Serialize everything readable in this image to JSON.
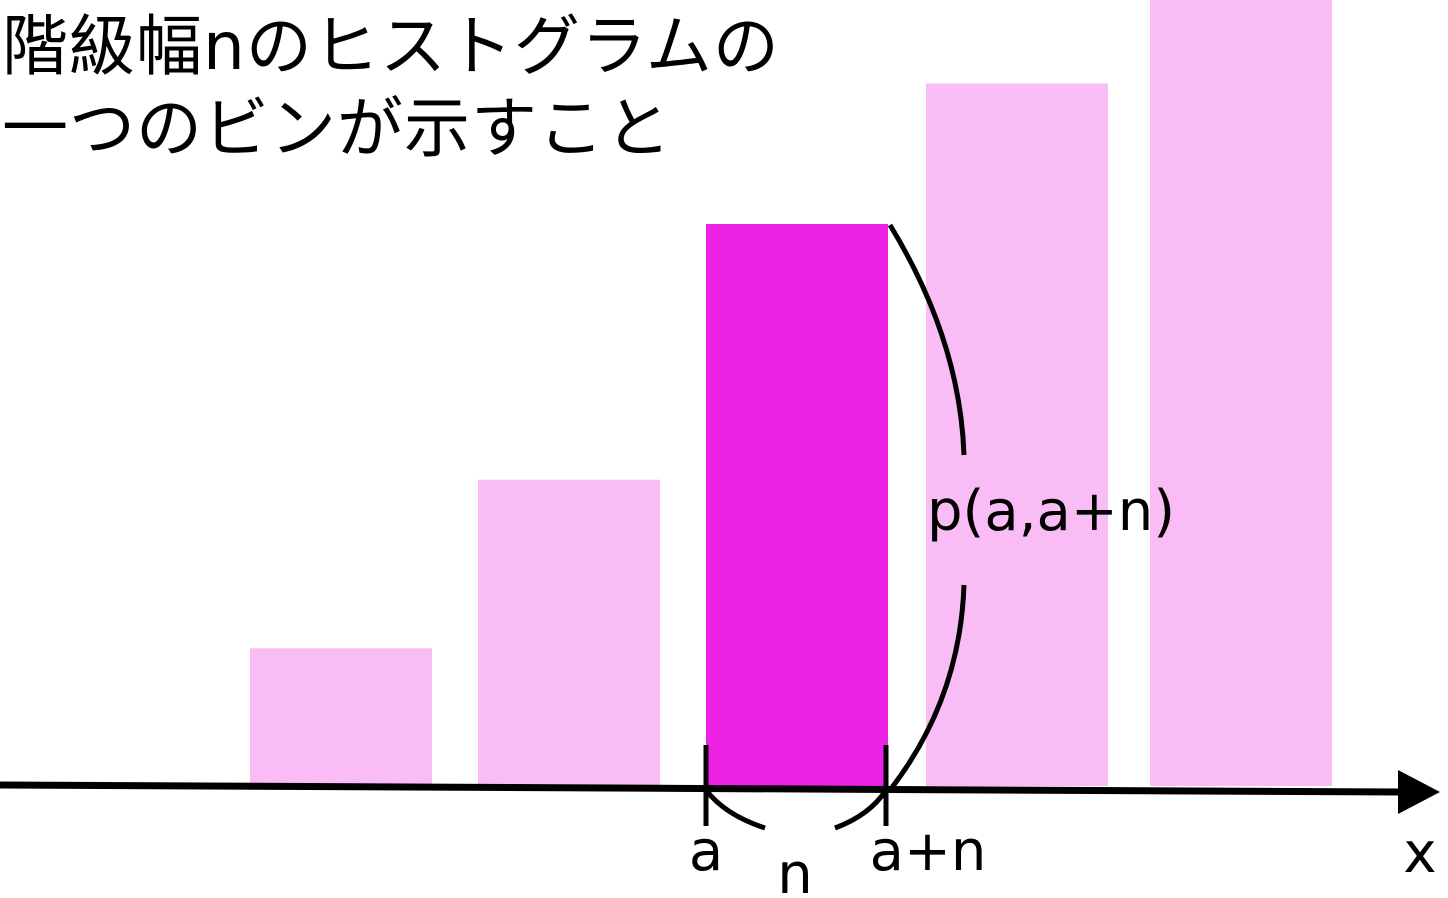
{
  "title": {
    "line1": "階級幅nのヒストグラムの",
    "line2": "一つのビンが示すこと"
  },
  "colors": {
    "bar": "#f9bcf5",
    "highlight_bar": "#ee22e4",
    "axis": "#000000"
  },
  "chart_data": {
    "type": "bar",
    "relative_heights": [
      0.245,
      0.545,
      1.0,
      1.25,
      1.4
    ],
    "highlighted_index": 2
  },
  "labels": {
    "bin_start": "a",
    "bin_end": "a+n",
    "bin_width": "n",
    "probability": "p(a,a+n)",
    "axis_x": "x"
  }
}
